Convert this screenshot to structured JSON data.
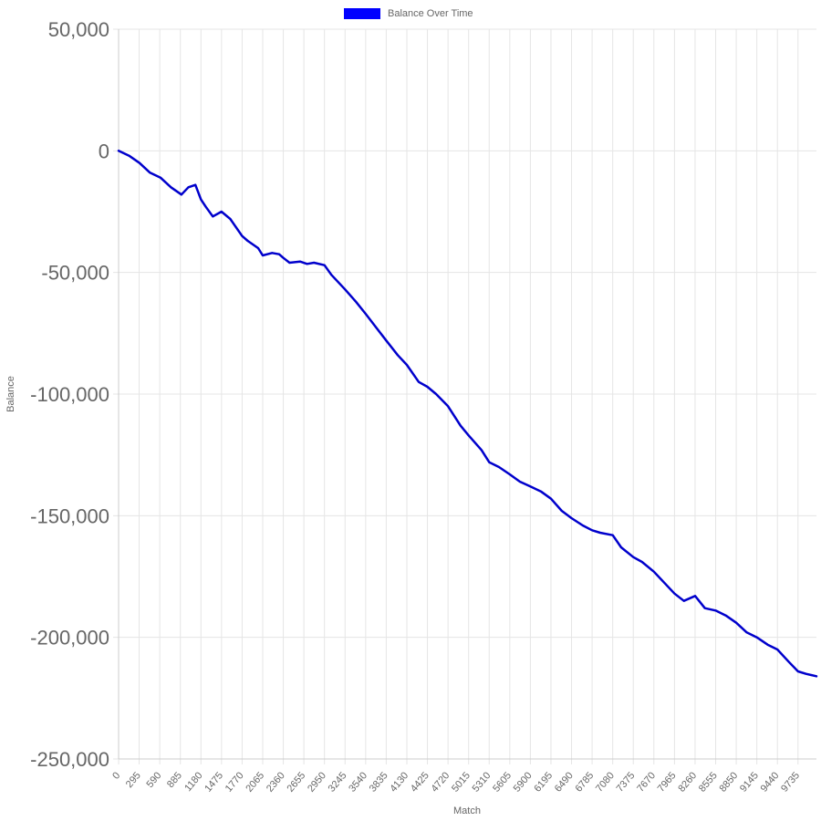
{
  "chart_data": {
    "type": "line",
    "xlabel": "Match",
    "ylabel": "Balance",
    "x_min": 0,
    "x_max": 9999,
    "x_tick_step": 295,
    "x_tick_labels": [
      "0",
      "295",
      "590",
      "885",
      "1180",
      "1475",
      "1770",
      "2065",
      "2360",
      "2655",
      "2950",
      "3245",
      "3540",
      "3835",
      "4130",
      "4425",
      "4720",
      "5015",
      "5310",
      "5605",
      "5900",
      "6195",
      "6490",
      "6785",
      "7080",
      "7375",
      "7670",
      "7965",
      "8260",
      "8555",
      "8850",
      "9145",
      "9440",
      "9735"
    ],
    "ylim": [
      -250000,
      50000
    ],
    "y_ticks": [
      50000,
      0,
      -50000,
      -100000,
      -150000,
      -200000,
      -250000
    ],
    "y_tick_labels": [
      "50,000",
      "0",
      "-50,000",
      "-100,000",
      "-150,000",
      "-200,000",
      "-250,000"
    ],
    "grid": true,
    "legend_position": "top-center",
    "series": [
      {
        "name": "Balance Over Time",
        "color": "#0000CC",
        "legend_color": "#0000FF",
        "x": [
          0,
          150,
          300,
          450,
          600,
          750,
          900,
          1000,
          1100,
          1180,
          1250,
          1350,
          1475,
          1600,
          1770,
          1850,
          2000,
          2065,
          2200,
          2300,
          2360,
          2450,
          2600,
          2700,
          2800,
          2950,
          3050,
          3245,
          3400,
          3540,
          3700,
          3835,
          4000,
          4130,
          4300,
          4425,
          4550,
          4720,
          4900,
          5015,
          5200,
          5310,
          5450,
          5605,
          5750,
          5900,
          6050,
          6195,
          6350,
          6490,
          6650,
          6785,
          6900,
          7080,
          7200,
          7375,
          7500,
          7670,
          7800,
          7965,
          8100,
          8260,
          8400,
          8555,
          8700,
          8850,
          9000,
          9145,
          9300,
          9440,
          9600,
          9735,
          9850,
          9999
        ],
        "values": [
          0,
          -2000,
          -5000,
          -9000,
          -11000,
          -15000,
          -18000,
          -15000,
          -14000,
          -20000,
          -23000,
          -27000,
          -25000,
          -28000,
          -35000,
          -37000,
          -40000,
          -43000,
          -42000,
          -42500,
          -44000,
          -46000,
          -45500,
          -46500,
          -46000,
          -47000,
          -51000,
          -57000,
          -62000,
          -67000,
          -73000,
          -78000,
          -84000,
          -88000,
          -95000,
          -97000,
          -100000,
          -105000,
          -113000,
          -117000,
          -123000,
          -128000,
          -130000,
          -133000,
          -136000,
          -138000,
          -140000,
          -143000,
          -148000,
          -151000,
          -154000,
          -156000,
          -157000,
          -158000,
          -163000,
          -167000,
          -169000,
          -173000,
          -177000,
          -182000,
          -185000,
          -183000,
          -188000,
          -189000,
          -191000,
          -194000,
          -198000,
          -200000,
          -203000,
          -205000,
          -210000,
          -214000,
          -215000,
          -216000
        ]
      }
    ]
  }
}
